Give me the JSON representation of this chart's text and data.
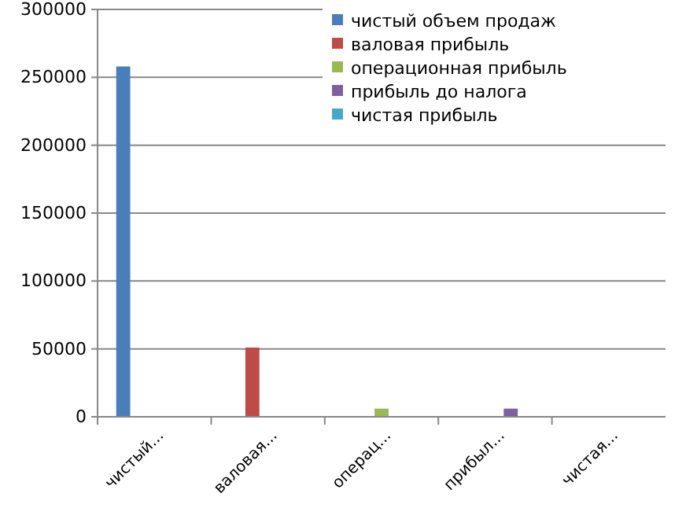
{
  "chart_data": {
    "type": "bar",
    "categories": [
      "чистый...",
      "валовая...",
      "операц...",
      "прибыл...",
      "чистая..."
    ],
    "series": [
      {
        "name": "чистый объем продаж",
        "color": "#4a7ebb",
        "values": [
          258000,
          0,
          0,
          0,
          0
        ]
      },
      {
        "name": "валовая прибыль",
        "color": "#be4b48",
        "values": [
          0,
          51000,
          0,
          0,
          0
        ]
      },
      {
        "name": "операционная прибыль",
        "color": "#98b954",
        "values": [
          0,
          0,
          6000,
          0,
          0
        ]
      },
      {
        "name": "прибыль до налога",
        "color": "#7d60a0",
        "values": [
          0,
          0,
          0,
          6000,
          0
        ]
      },
      {
        "name": "чистая прибыль",
        "color": "#46aac5",
        "values": [
          0,
          0,
          0,
          0,
          0
        ]
      }
    ],
    "ylim": [
      0,
      300000
    ],
    "yticks": [
      0,
      50000,
      100000,
      150000,
      200000,
      250000,
      300000
    ],
    "grid": "y",
    "legend": "top right"
  }
}
